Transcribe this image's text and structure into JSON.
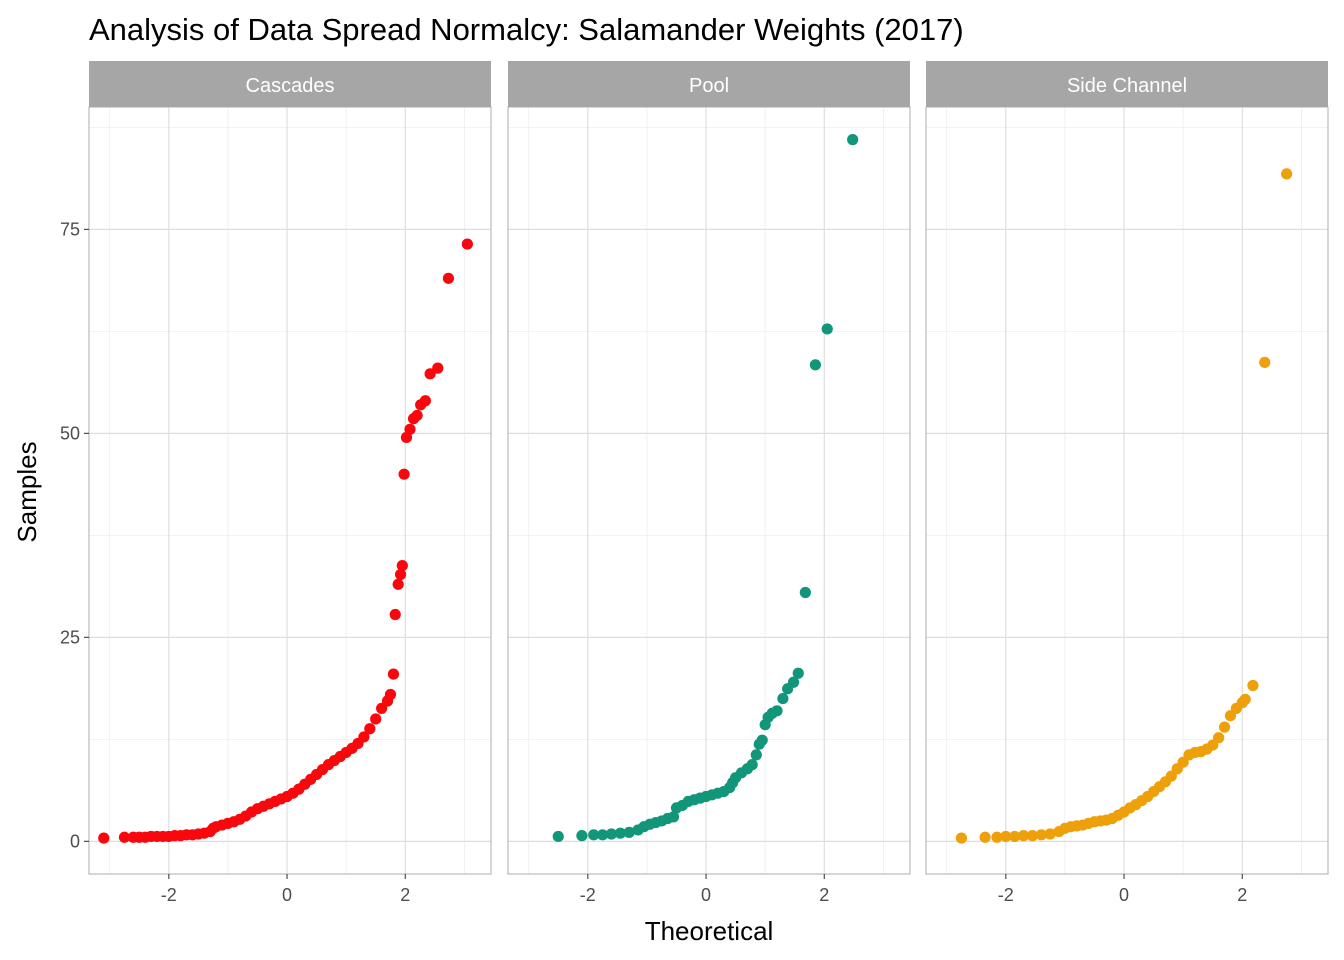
{
  "chart_data": {
    "type": "scatter",
    "title": "Analysis of Data Spread Normalcy: Salamander Weights (2017)",
    "xlabel": "Theoretical",
    "ylabel": "Samples",
    "xlim": [
      -3.35,
      3.45
    ],
    "ylim": [
      -4,
      90
    ],
    "x_ticks": [
      -2,
      0,
      2
    ],
    "x_tick_labels": [
      "-2",
      "0",
      "2"
    ],
    "y_ticks": [
      0,
      25,
      50,
      75
    ],
    "y_tick_labels": [
      "0",
      "25",
      "50",
      "75"
    ],
    "x_minor": [
      -3,
      -1,
      1,
      3
    ],
    "y_minor": [
      12.5,
      37.5,
      62.5,
      87.5
    ],
    "grid": true,
    "legend": "none",
    "panels": [
      {
        "name": "Cascades",
        "color": "#f8070c",
        "points": [
          [
            -3.1,
            0.4
          ],
          [
            -2.75,
            0.5
          ],
          [
            -2.6,
            0.5
          ],
          [
            -2.5,
            0.5
          ],
          [
            -2.4,
            0.5
          ],
          [
            -2.3,
            0.6
          ],
          [
            -2.2,
            0.6
          ],
          [
            -2.1,
            0.6
          ],
          [
            -2.0,
            0.6
          ],
          [
            -1.9,
            0.7
          ],
          [
            -1.8,
            0.7
          ],
          [
            -1.7,
            0.8
          ],
          [
            -1.6,
            0.8
          ],
          [
            -1.5,
            0.9
          ],
          [
            -1.4,
            1.0
          ],
          [
            -1.3,
            1.2
          ],
          [
            -1.25,
            1.6
          ],
          [
            -1.2,
            1.8
          ],
          [
            -1.1,
            2.0
          ],
          [
            -1.0,
            2.2
          ],
          [
            -0.9,
            2.4
          ],
          [
            -0.8,
            2.7
          ],
          [
            -0.7,
            3.1
          ],
          [
            -0.6,
            3.6
          ],
          [
            -0.5,
            4.0
          ],
          [
            -0.4,
            4.3
          ],
          [
            -0.3,
            4.6
          ],
          [
            -0.2,
            4.9
          ],
          [
            -0.1,
            5.2
          ],
          [
            0.0,
            5.5
          ],
          [
            0.1,
            5.9
          ],
          [
            0.2,
            6.4
          ],
          [
            0.3,
            7.0
          ],
          [
            0.4,
            7.6
          ],
          [
            0.5,
            8.2
          ],
          [
            0.6,
            8.8
          ],
          [
            0.7,
            9.4
          ],
          [
            0.8,
            9.9
          ],
          [
            0.9,
            10.4
          ],
          [
            1.0,
            10.9
          ],
          [
            1.1,
            11.4
          ],
          [
            1.2,
            12.0
          ],
          [
            1.3,
            12.8
          ],
          [
            1.4,
            13.8
          ],
          [
            1.5,
            15.0
          ],
          [
            1.6,
            16.3
          ],
          [
            1.7,
            17.2
          ],
          [
            1.75,
            18.0
          ],
          [
            1.8,
            20.5
          ],
          [
            1.83,
            27.8
          ],
          [
            1.88,
            31.5
          ],
          [
            1.92,
            32.7
          ],
          [
            1.95,
            33.8
          ],
          [
            1.98,
            45.0
          ],
          [
            2.02,
            49.5
          ],
          [
            2.08,
            50.5
          ],
          [
            2.14,
            51.8
          ],
          [
            2.2,
            52.2
          ],
          [
            2.26,
            53.5
          ],
          [
            2.34,
            54.0
          ],
          [
            2.42,
            57.3
          ],
          [
            2.55,
            58.0
          ],
          [
            2.73,
            69.0
          ],
          [
            3.05,
            73.2
          ]
        ]
      },
      {
        "name": "Pool",
        "color": "#12967a",
        "points": [
          [
            -2.5,
            0.6
          ],
          [
            -2.1,
            0.7
          ],
          [
            -1.9,
            0.8
          ],
          [
            -1.75,
            0.8
          ],
          [
            -1.6,
            0.9
          ],
          [
            -1.45,
            1.0
          ],
          [
            -1.3,
            1.1
          ],
          [
            -1.15,
            1.4
          ],
          [
            -1.05,
            1.8
          ],
          [
            -0.95,
            2.1
          ],
          [
            -0.85,
            2.3
          ],
          [
            -0.75,
            2.5
          ],
          [
            -0.65,
            2.8
          ],
          [
            -0.55,
            3.0
          ],
          [
            -0.5,
            4.1
          ],
          [
            -0.4,
            4.4
          ],
          [
            -0.3,
            4.9
          ],
          [
            -0.2,
            5.1
          ],
          [
            -0.1,
            5.3
          ],
          [
            0.0,
            5.5
          ],
          [
            0.1,
            5.7
          ],
          [
            0.2,
            5.9
          ],
          [
            0.3,
            6.1
          ],
          [
            0.4,
            6.6
          ],
          [
            0.45,
            7.2
          ],
          [
            0.5,
            7.8
          ],
          [
            0.6,
            8.4
          ],
          [
            0.7,
            8.9
          ],
          [
            0.78,
            9.4
          ],
          [
            0.85,
            10.6
          ],
          [
            0.9,
            11.9
          ],
          [
            0.95,
            12.4
          ],
          [
            1.0,
            14.3
          ],
          [
            1.05,
            15.2
          ],
          [
            1.12,
            15.7
          ],
          [
            1.2,
            16.0
          ],
          [
            1.3,
            17.5
          ],
          [
            1.38,
            18.7
          ],
          [
            1.48,
            19.5
          ],
          [
            1.56,
            20.6
          ],
          [
            1.68,
            30.5
          ],
          [
            1.85,
            58.4
          ],
          [
            2.05,
            62.8
          ],
          [
            2.48,
            86.0
          ]
        ]
      },
      {
        "name": "Side Channel",
        "color": "#eea00b",
        "points": [
          [
            -2.75,
            0.4
          ],
          [
            -2.35,
            0.5
          ],
          [
            -2.15,
            0.5
          ],
          [
            -2.0,
            0.6
          ],
          [
            -1.85,
            0.6
          ],
          [
            -1.7,
            0.7
          ],
          [
            -1.55,
            0.7
          ],
          [
            -1.4,
            0.8
          ],
          [
            -1.25,
            0.9
          ],
          [
            -1.1,
            1.2
          ],
          [
            -1.0,
            1.6
          ],
          [
            -0.9,
            1.8
          ],
          [
            -0.8,
            1.9
          ],
          [
            -0.7,
            2.0
          ],
          [
            -0.6,
            2.2
          ],
          [
            -0.5,
            2.4
          ],
          [
            -0.4,
            2.5
          ],
          [
            -0.3,
            2.6
          ],
          [
            -0.2,
            2.8
          ],
          [
            -0.1,
            3.2
          ],
          [
            0.0,
            3.6
          ],
          [
            0.1,
            4.1
          ],
          [
            0.2,
            4.5
          ],
          [
            0.3,
            5.0
          ],
          [
            0.4,
            5.5
          ],
          [
            0.5,
            6.1
          ],
          [
            0.6,
            6.7
          ],
          [
            0.7,
            7.3
          ],
          [
            0.8,
            8.0
          ],
          [
            0.9,
            8.9
          ],
          [
            1.0,
            9.7
          ],
          [
            1.1,
            10.6
          ],
          [
            1.2,
            10.9
          ],
          [
            1.3,
            11.0
          ],
          [
            1.4,
            11.3
          ],
          [
            1.5,
            11.8
          ],
          [
            1.6,
            12.7
          ],
          [
            1.7,
            14.0
          ],
          [
            1.8,
            15.4
          ],
          [
            1.9,
            16.3
          ],
          [
            2.0,
            17.0
          ],
          [
            2.05,
            17.4
          ],
          [
            2.18,
            19.1
          ],
          [
            2.38,
            58.7
          ],
          [
            2.75,
            81.8
          ]
        ]
      }
    ]
  }
}
